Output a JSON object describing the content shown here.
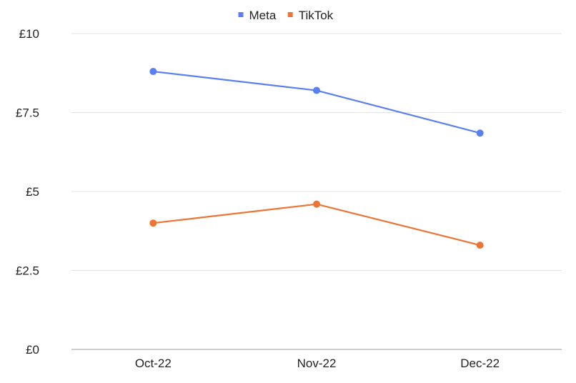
{
  "chart_data": {
    "type": "line",
    "categories": [
      "Oct-22",
      "Nov-22",
      "Dec-22"
    ],
    "series": [
      {
        "name": "Meta",
        "color": "#5a7ff0",
        "values": [
          8.8,
          8.2,
          6.85
        ]
      },
      {
        "name": "TikTok",
        "color": "#ec7434",
        "values": [
          4.0,
          4.6,
          3.3
        ]
      }
    ],
    "yticks": [
      0,
      2.5,
      5,
      7.5,
      10
    ],
    "ytick_labels": [
      "£0",
      "£2.5",
      "£5",
      "£7.5",
      "£10"
    ],
    "ylim": [
      0,
      10
    ],
    "grid": true,
    "legend_position": "top-center",
    "title": "",
    "xlabel": "",
    "ylabel": ""
  }
}
